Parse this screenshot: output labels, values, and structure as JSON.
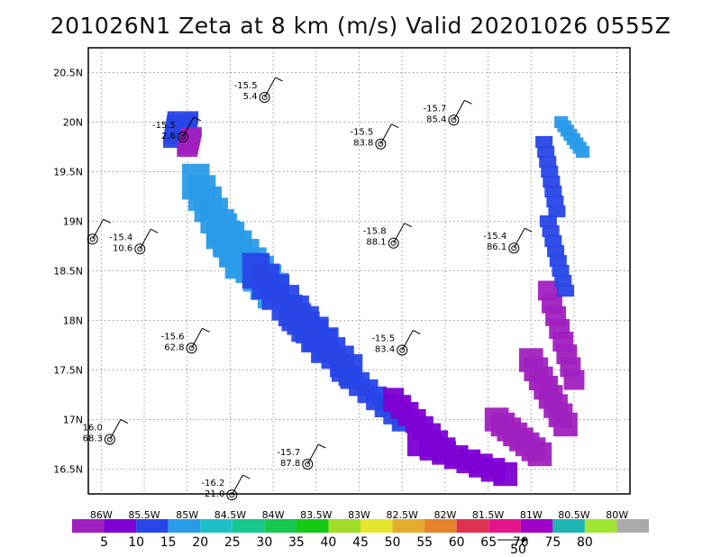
{
  "title": "201026N1 Zeta at 8 km (m/s) Valid 20201026 0555Z",
  "chart_data": {
    "type": "scatter",
    "title": "201026N1 Zeta at 8 km (m/s) Valid 20201026 0555Z",
    "xlim": [
      -86.15,
      -79.85
    ],
    "ylim": [
      16.25,
      20.75
    ],
    "x_ticks": [
      "86W",
      "85.5W",
      "85W",
      "84.5W",
      "84W",
      "83.5W",
      "83W",
      "82.5W",
      "82W",
      "81.5W",
      "81W",
      "80.5W",
      "80W"
    ],
    "y_ticks": [
      "16.5N",
      "17N",
      "17.5N",
      "18N",
      "18.5N",
      "19N",
      "19.5N",
      "20N",
      "20.5N"
    ],
    "grid": true,
    "colorbar": {
      "labels": [
        "5",
        "10",
        "15",
        "20",
        "25",
        "30",
        "35",
        "40",
        "45",
        "50",
        "55",
        "60",
        "65",
        "70",
        "75",
        "80"
      ],
      "colors": [
        "#a020c0",
        "#7d00d4",
        "#2846e8",
        "#2a9be8",
        "#1ec0c8",
        "#14c890",
        "#14c850",
        "#14c814",
        "#a0dc28",
        "#e6e630",
        "#e6ac2e",
        "#e6822a",
        "#e03050",
        "#e6148c",
        "#a000c8",
        "#1eb4b4",
        "#a0e632",
        "#aaaaaa"
      ]
    },
    "reference_vector": "50",
    "stations": [
      {
        "lon": -84.1,
        "lat": 20.25,
        "top": "-15.5",
        "bottom": "5.4"
      },
      {
        "lon": -85.05,
        "lat": 19.85,
        "top": "-15.5",
        "bottom": "2.6"
      },
      {
        "lon": -82.75,
        "lat": 19.78,
        "top": "-15.5",
        "bottom": "83.8"
      },
      {
        "lon": -81.9,
        "lat": 20.02,
        "top": "-15.7",
        "bottom": "85.4"
      },
      {
        "lon": -86.1,
        "lat": 18.82,
        "top": "",
        "bottom": ""
      },
      {
        "lon": -85.55,
        "lat": 18.72,
        "top": "-15.4",
        "bottom": "10.6"
      },
      {
        "lon": -82.6,
        "lat": 18.78,
        "top": "-15.8",
        "bottom": "88.1"
      },
      {
        "lon": -81.2,
        "lat": 18.73,
        "top": "-15.4",
        "bottom": "86.1"
      },
      {
        "lon": -84.95,
        "lat": 17.72,
        "top": "-15.6",
        "bottom": "62.8"
      },
      {
        "lon": -82.5,
        "lat": 17.7,
        "top": "-15.5",
        "bottom": "83.4"
      },
      {
        "lon": -85.9,
        "lat": 16.8,
        "top": "16.0",
        "bottom": "68.3"
      },
      {
        "lon": -83.6,
        "lat": 16.55,
        "top": "-15.7",
        "bottom": "87.8"
      },
      {
        "lon": -84.48,
        "lat": 16.24,
        "top": "-16.2",
        "bottom": "21.0"
      }
    ]
  }
}
